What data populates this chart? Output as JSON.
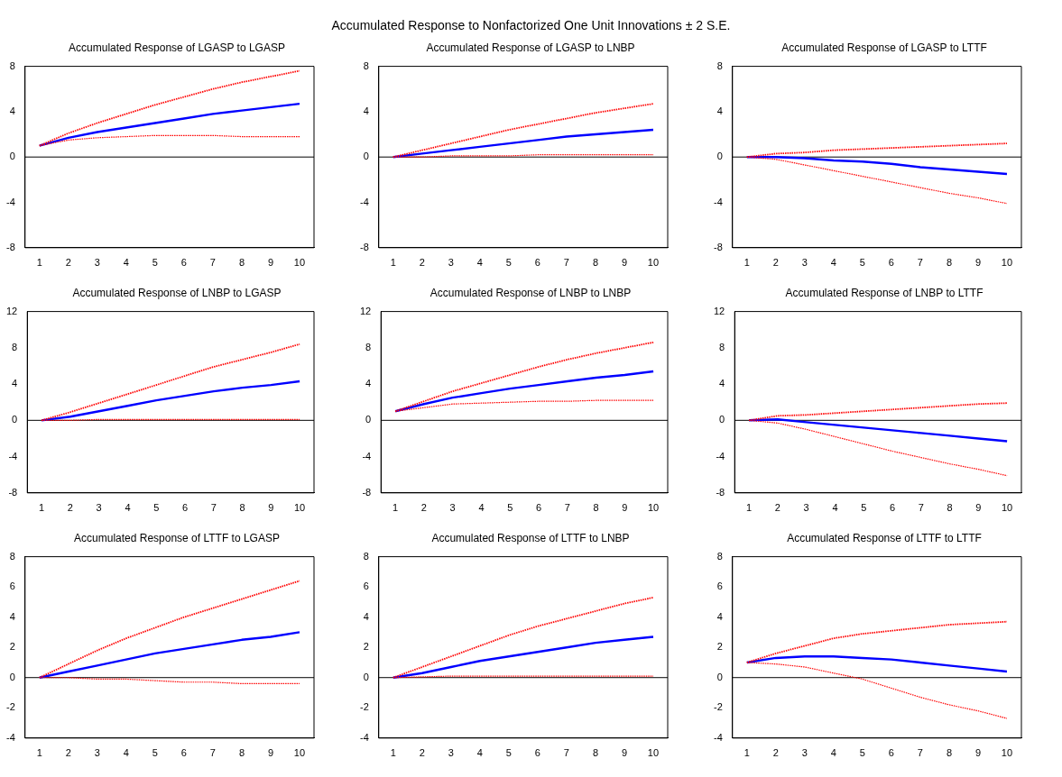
{
  "chart_data": [
    {
      "type": "other",
      "title": "Accumulated Response to Nonfactorized One Unit Innovations ± 2 S.E."
    },
    {
      "type": "line",
      "title": "Accumulated Response of LGASP to LGASP",
      "categories": [
        "1",
        "2",
        "3",
        "4",
        "5",
        "6",
        "7",
        "8",
        "9",
        "10"
      ],
      "ylim": [
        -8,
        8
      ],
      "yticks": [
        -8,
        -4,
        0,
        4,
        8
      ],
      "grid": false,
      "legend": false,
      "marker": "none",
      "ref_lines": [
        {
          "axis": "y",
          "value": 0,
          "color": "#000000"
        }
      ],
      "series": [
        {
          "color": "#0000ff",
          "line_style": "solid",
          "values": [
            1,
            1.7,
            2.2,
            2.6,
            3.0,
            3.4,
            3.8,
            4.1,
            4.4,
            4.7
          ]
        },
        {
          "color": "#ff0000",
          "line_style": "dotted",
          "values": [
            1,
            2.1,
            3.0,
            3.8,
            4.6,
            5.3,
            6.0,
            6.6,
            7.1,
            7.6
          ]
        },
        {
          "color": "#ff0000",
          "line_style": "dotted",
          "values": [
            1,
            1.5,
            1.7,
            1.8,
            1.9,
            1.9,
            1.9,
            1.8,
            1.8,
            1.8
          ]
        }
      ]
    },
    {
      "type": "line",
      "title": "Accumulated Response of LGASP to LNBP",
      "categories": [
        "1",
        "2",
        "3",
        "4",
        "5",
        "6",
        "7",
        "8",
        "9",
        "10"
      ],
      "ylim": [
        -8,
        8
      ],
      "yticks": [
        -8,
        -4,
        0,
        4,
        8
      ],
      "grid": false,
      "legend": false,
      "marker": "none",
      "ref_lines": [
        {
          "axis": "y",
          "value": 0,
          "color": "#000000"
        }
      ],
      "series": [
        {
          "color": "#0000ff",
          "line_style": "solid",
          "values": [
            0,
            0.3,
            0.6,
            0.9,
            1.2,
            1.5,
            1.8,
            2.0,
            2.2,
            2.4
          ]
        },
        {
          "color": "#ff0000",
          "line_style": "dotted",
          "values": [
            0,
            0.6,
            1.2,
            1.8,
            2.4,
            2.9,
            3.4,
            3.9,
            4.3,
            4.7
          ]
        },
        {
          "color": "#ff0000",
          "line_style": "dotted",
          "values": [
            0,
            0,
            0.1,
            0.1,
            0.1,
            0.2,
            0.2,
            0.2,
            0.2,
            0.2
          ]
        }
      ]
    },
    {
      "type": "line",
      "title": "Accumulated Response of LGASP to LTTF",
      "categories": [
        "1",
        "2",
        "3",
        "4",
        "5",
        "6",
        "7",
        "8",
        "9",
        "10"
      ],
      "ylim": [
        -8,
        8
      ],
      "yticks": [
        -8,
        -4,
        0,
        4,
        8
      ],
      "grid": false,
      "legend": false,
      "marker": "none",
      "ref_lines": [
        {
          "axis": "y",
          "value": 0,
          "color": "#000000"
        }
      ],
      "series": [
        {
          "color": "#0000ff",
          "line_style": "solid",
          "values": [
            0,
            0,
            -0.1,
            -0.3,
            -0.4,
            -0.6,
            -0.9,
            -1.1,
            -1.3,
            -1.5
          ]
        },
        {
          "color": "#ff0000",
          "line_style": "dotted",
          "values": [
            0,
            0.3,
            0.4,
            0.6,
            0.7,
            0.8,
            0.9,
            1.0,
            1.1,
            1.2
          ]
        },
        {
          "color": "#ff0000",
          "line_style": "dotted",
          "values": [
            0,
            -0.2,
            -0.7,
            -1.2,
            -1.7,
            -2.2,
            -2.7,
            -3.2,
            -3.6,
            -4.1
          ]
        }
      ]
    },
    {
      "type": "line",
      "title": "Accumulated Response of LNBP to LGASP",
      "categories": [
        "1",
        "2",
        "3",
        "4",
        "5",
        "6",
        "7",
        "8",
        "9",
        "10"
      ],
      "ylim": [
        -8,
        12
      ],
      "yticks": [
        -8,
        -4,
        0,
        4,
        8,
        12
      ],
      "grid": false,
      "legend": false,
      "marker": "none",
      "ref_lines": [
        {
          "axis": "y",
          "value": 0,
          "color": "#000000"
        }
      ],
      "series": [
        {
          "color": "#0000ff",
          "line_style": "solid",
          "values": [
            0,
            0.4,
            1.0,
            1.6,
            2.2,
            2.7,
            3.2,
            3.6,
            3.9,
            4.3
          ]
        },
        {
          "color": "#ff0000",
          "line_style": "dotted",
          "values": [
            0,
            0.9,
            1.9,
            2.9,
            3.9,
            4.9,
            5.9,
            6.7,
            7.5,
            8.4
          ]
        },
        {
          "color": "#ff0000",
          "line_style": "dotted",
          "values": [
            0,
            0,
            0.1,
            0.1,
            0.1,
            0.1,
            0.1,
            0.1,
            0.1,
            0.1
          ]
        }
      ]
    },
    {
      "type": "line",
      "title": "Accumulated Response of LNBP to LNBP",
      "categories": [
        "1",
        "2",
        "3",
        "4",
        "5",
        "6",
        "7",
        "8",
        "9",
        "10"
      ],
      "ylim": [
        -8,
        12
      ],
      "yticks": [
        -8,
        -4,
        0,
        4,
        8,
        12
      ],
      "grid": false,
      "legend": false,
      "marker": "none",
      "ref_lines": [
        {
          "axis": "y",
          "value": 0,
          "color": "#000000"
        }
      ],
      "series": [
        {
          "color": "#0000ff",
          "line_style": "solid",
          "values": [
            1,
            1.8,
            2.5,
            3.0,
            3.5,
            3.9,
            4.3,
            4.7,
            5.0,
            5.4
          ]
        },
        {
          "color": "#ff0000",
          "line_style": "dotted",
          "values": [
            1,
            2.1,
            3.2,
            4.1,
            5.0,
            5.9,
            6.7,
            7.4,
            8.0,
            8.6
          ]
        },
        {
          "color": "#ff0000",
          "line_style": "dotted",
          "values": [
            1,
            1.4,
            1.8,
            1.9,
            2.0,
            2.1,
            2.1,
            2.2,
            2.2,
            2.2
          ]
        }
      ]
    },
    {
      "type": "line",
      "title": "Accumulated Response of LNBP to LTTF",
      "categories": [
        "1",
        "2",
        "3",
        "4",
        "5",
        "6",
        "7",
        "8",
        "9",
        "10"
      ],
      "ylim": [
        -8,
        12
      ],
      "yticks": [
        -8,
        -4,
        0,
        4,
        8,
        12
      ],
      "grid": false,
      "legend": false,
      "marker": "none",
      "ref_lines": [
        {
          "axis": "y",
          "value": 0,
          "color": "#000000"
        }
      ],
      "series": [
        {
          "color": "#0000ff",
          "line_style": "solid",
          "values": [
            0,
            0.1,
            -0.2,
            -0.5,
            -0.8,
            -1.1,
            -1.4,
            -1.7,
            -2.0,
            -2.3
          ]
        },
        {
          "color": "#ff0000",
          "line_style": "dotted",
          "values": [
            0,
            0.5,
            0.6,
            0.8,
            1.0,
            1.2,
            1.4,
            1.6,
            1.8,
            1.9
          ]
        },
        {
          "color": "#ff0000",
          "line_style": "dotted",
          "values": [
            0,
            -0.3,
            -1.0,
            -1.8,
            -2.6,
            -3.4,
            -4.1,
            -4.8,
            -5.4,
            -6.1
          ]
        }
      ]
    },
    {
      "type": "line",
      "title": "Accumulated Response of LTTF to LGASP",
      "categories": [
        "1",
        "2",
        "3",
        "4",
        "5",
        "6",
        "7",
        "8",
        "9",
        "10"
      ],
      "ylim": [
        -4,
        8
      ],
      "yticks": [
        -4,
        -2,
        0,
        2,
        4,
        6,
        8
      ],
      "grid": false,
      "legend": false,
      "marker": "none",
      "ref_lines": [
        {
          "axis": "y",
          "value": 0,
          "color": "#000000"
        }
      ],
      "series": [
        {
          "color": "#0000ff",
          "line_style": "solid",
          "values": [
            0,
            0.4,
            0.8,
            1.2,
            1.6,
            1.9,
            2.2,
            2.5,
            2.7,
            3.0
          ]
        },
        {
          "color": "#ff0000",
          "line_style": "dotted",
          "values": [
            0,
            0.9,
            1.8,
            2.6,
            3.3,
            4.0,
            4.6,
            5.2,
            5.8,
            6.4
          ]
        },
        {
          "color": "#ff0000",
          "line_style": "dotted",
          "values": [
            0,
            0,
            -0.1,
            -0.1,
            -0.2,
            -0.3,
            -0.3,
            -0.4,
            -0.4,
            -0.4
          ]
        }
      ]
    },
    {
      "type": "line",
      "title": "Accumulated Response of LTTF to LNBP",
      "categories": [
        "1",
        "2",
        "3",
        "4",
        "5",
        "6",
        "7",
        "8",
        "9",
        "10"
      ],
      "ylim": [
        -4,
        8
      ],
      "yticks": [
        -4,
        -2,
        0,
        2,
        4,
        6,
        8
      ],
      "grid": false,
      "legend": false,
      "marker": "none",
      "ref_lines": [
        {
          "axis": "y",
          "value": 0,
          "color": "#000000"
        }
      ],
      "series": [
        {
          "color": "#0000ff",
          "line_style": "solid",
          "values": [
            0,
            0.3,
            0.7,
            1.1,
            1.4,
            1.7,
            2.0,
            2.3,
            2.5,
            2.7
          ]
        },
        {
          "color": "#ff0000",
          "line_style": "dotted",
          "values": [
            0,
            0.7,
            1.4,
            2.1,
            2.8,
            3.4,
            3.9,
            4.4,
            4.9,
            5.3
          ]
        },
        {
          "color": "#ff0000",
          "line_style": "dotted",
          "values": [
            0,
            0.05,
            0.1,
            0.1,
            0.1,
            0.1,
            0.1,
            0.1,
            0.1,
            0.1
          ]
        }
      ]
    },
    {
      "type": "line",
      "title": "Accumulated Response of LTTF to LTTF",
      "categories": [
        "1",
        "2",
        "3",
        "4",
        "5",
        "6",
        "7",
        "8",
        "9",
        "10"
      ],
      "ylim": [
        -4,
        8
      ],
      "yticks": [
        -4,
        -2,
        0,
        2,
        4,
        6,
        8
      ],
      "grid": false,
      "legend": false,
      "marker": "none",
      "ref_lines": [
        {
          "axis": "y",
          "value": 0,
          "color": "#000000"
        }
      ],
      "series": [
        {
          "color": "#0000ff",
          "line_style": "solid",
          "values": [
            1,
            1.3,
            1.4,
            1.4,
            1.3,
            1.2,
            1.0,
            0.8,
            0.6,
            0.4
          ]
        },
        {
          "color": "#ff0000",
          "line_style": "dotted",
          "values": [
            1,
            1.6,
            2.1,
            2.6,
            2.9,
            3.1,
            3.3,
            3.5,
            3.6,
            3.7
          ]
        },
        {
          "color": "#ff0000",
          "line_style": "dotted",
          "values": [
            1,
            0.9,
            0.7,
            0.3,
            -0.1,
            -0.7,
            -1.3,
            -1.8,
            -2.2,
            -2.7
          ]
        }
      ]
    }
  ]
}
